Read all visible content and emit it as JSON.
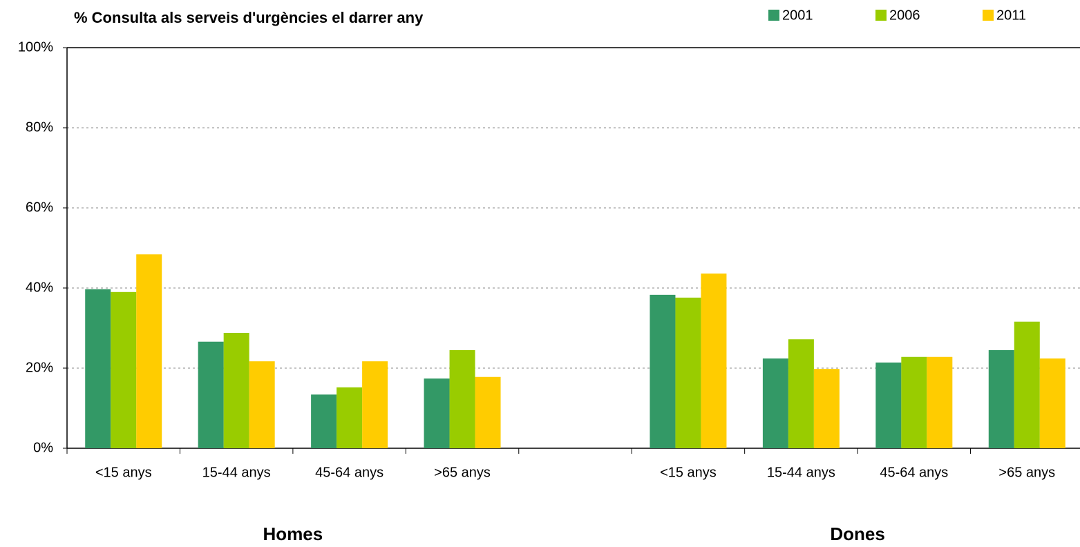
{
  "chart_data": {
    "type": "bar",
    "title": "% Consulta als serveis d'urgències el darrer any",
    "categories": [
      "<15 anys",
      "15-44 anys",
      "45-64 anys",
      ">65 anys",
      null,
      "<15 anys",
      "15-44 anys",
      "45-64 anys",
      ">65 anys"
    ],
    "series": [
      {
        "name": "2001",
        "color": "#339966",
        "values": [
          39.7,
          26.6,
          13.4,
          17.4,
          null,
          38.3,
          22.4,
          21.4,
          24.5
        ]
      },
      {
        "name": "2006",
        "color": "#99cc00",
        "values": [
          39.0,
          28.8,
          15.2,
          24.5,
          null,
          37.6,
          27.2,
          22.8,
          31.6
        ]
      },
      {
        "name": "2011",
        "color": "#ffcc00",
        "values": [
          48.4,
          21.7,
          21.7,
          17.8,
          null,
          43.6,
          19.8,
          22.8,
          22.4
        ]
      }
    ],
    "group_labels": [
      "Homes",
      "Dones"
    ],
    "ylim": [
      0,
      100
    ],
    "yticks": [
      {
        "value": 0,
        "label": "0%"
      },
      {
        "value": 20,
        "label": "20%"
      },
      {
        "value": 40,
        "label": "40%"
      },
      {
        "value": 60,
        "label": "60%"
      },
      {
        "value": 80,
        "label": "80%"
      },
      {
        "value": 100,
        "label": "100%"
      }
    ],
    "grid": true,
    "legend": "top-right"
  }
}
